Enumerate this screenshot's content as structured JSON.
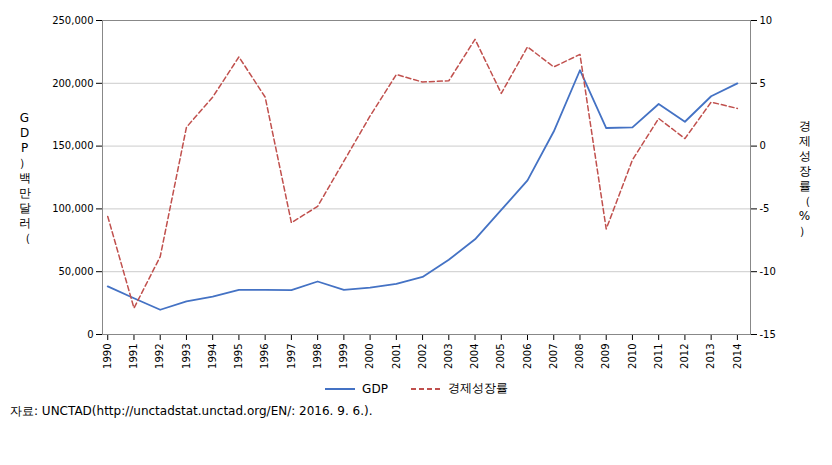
{
  "chart_data": {
    "type": "line",
    "x": [
      1990,
      1991,
      1992,
      1993,
      1994,
      1995,
      1996,
      1997,
      1998,
      1999,
      2000,
      2001,
      2002,
      2003,
      2004,
      2005,
      2006,
      2007,
      2008,
      2009,
      2010,
      2011,
      2012,
      2013,
      2014
    ],
    "xlim": [
      1989.8,
      2014.5
    ],
    "xticks": [
      1990,
      1991,
      1992,
      1993,
      1994,
      1995,
      1996,
      1997,
      1998,
      1999,
      2000,
      2001,
      2002,
      2003,
      2004,
      2005,
      2006,
      2007,
      2008,
      2009,
      2010,
      2011,
      2012,
      2013,
      2014
    ],
    "ylabel": "GDP）백만달러（",
    "ylim": [
      0,
      250000
    ],
    "yticks": [
      0,
      {
        "value": 50000,
        "label": "50,000"
      },
      {
        "value": 100000,
        "label": "100,000"
      },
      {
        "value": 150000,
        "label": "150,000"
      },
      {
        "value": 200000,
        "label": "200,000"
      },
      {
        "value": 250000,
        "label": "250,000"
      }
    ],
    "y2label": "경제성장률（%）",
    "y2lim": [
      -15,
      10
    ],
    "y2ticks": [
      -15,
      -10,
      -5,
      0,
      5,
      10
    ],
    "series": [
      {
        "name": "GDP",
        "color": "#4472C4",
        "line_style": "solid",
        "values": [
          38300,
          28900,
          19700,
          26400,
          30100,
          35600,
          35500,
          35300,
          42200,
          35600,
          37300,
          40300,
          45800,
          59500,
          75800,
          99200,
          122700,
          161600,
          210400,
          164400,
          164900,
          183500,
          169400,
          189700,
          199900
        ]
      },
      {
        "name": "경제성장률",
        "color": "#C0504D",
        "line_style": "dashed",
        "axis": "y2",
        "values": [
          -5.6,
          -12.9,
          -8.8,
          1.5,
          3.9,
          7.1,
          3.9,
          -6.1,
          -4.8,
          -1.2,
          2.4,
          5.7,
          5.1,
          5.2,
          8.5,
          4.2,
          7.9,
          6.3,
          7.3,
          -6.6,
          -1.1,
          2.2,
          0.6,
          3.5,
          3.0
        ]
      }
    ],
    "grid": true,
    "legend": "bottom",
    "annotations": [
      "자료:  UNCTAD(http://unctadstat.unctad.org/EN/:  2016.  9.  6.)."
    ]
  }
}
